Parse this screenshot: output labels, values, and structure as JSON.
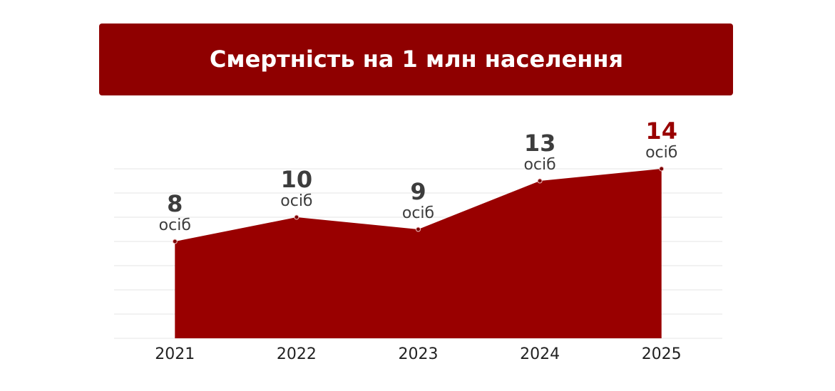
{
  "chart_data": {
    "type": "area",
    "title": "Смертність на 1 млн населення",
    "categories": [
      "2021",
      "2022",
      "2023",
      "2024",
      "2025"
    ],
    "values": [
      8,
      10,
      9,
      13,
      14
    ],
    "value_unit": "осіб",
    "value_label_colors": [
      "#3d3d3d",
      "#3d3d3d",
      "#3d3d3d",
      "#3d3d3d",
      "#990000"
    ],
    "color": "#990000",
    "ylim": [
      0,
      14
    ],
    "yticks": [
      0,
      2,
      4,
      6,
      8,
      10,
      12,
      14
    ],
    "grid": true
  }
}
